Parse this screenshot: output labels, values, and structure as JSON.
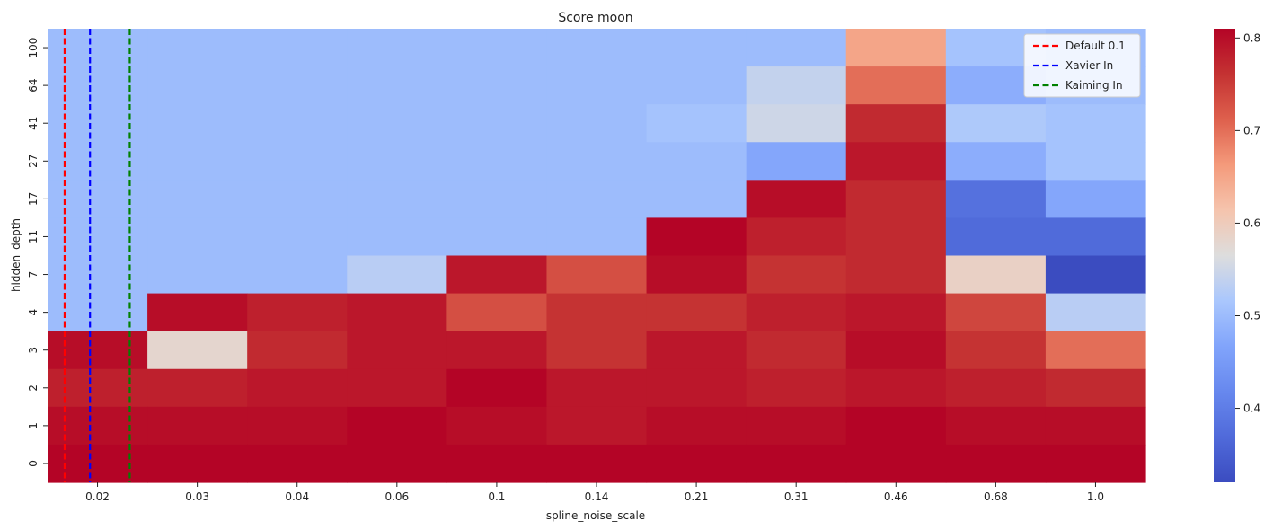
{
  "chart_data": {
    "type": "heatmap",
    "title": "Score moon",
    "xlabel": "spline_noise_scale",
    "ylabel": "hidden_depth",
    "x_categories": [
      "0.02",
      "0.03",
      "0.04",
      "0.06",
      "0.1",
      "0.14",
      "0.21",
      "0.31",
      "0.46",
      "0.68",
      "1.0"
    ],
    "y_categories": [
      "100",
      "64",
      "41",
      "27",
      "17",
      "11",
      "7",
      "4",
      "3",
      "2",
      "1",
      "0"
    ],
    "values": [
      [
        0.5,
        0.5,
        0.5,
        0.5,
        0.5,
        0.5,
        0.5,
        0.5,
        0.65,
        0.51,
        0.5
      ],
      [
        0.5,
        0.5,
        0.5,
        0.5,
        0.5,
        0.5,
        0.5,
        0.54,
        0.7,
        0.48,
        0.5
      ],
      [
        0.5,
        0.5,
        0.5,
        0.5,
        0.5,
        0.5,
        0.51,
        0.55,
        0.77,
        0.52,
        0.51
      ],
      [
        0.5,
        0.5,
        0.5,
        0.5,
        0.5,
        0.5,
        0.5,
        0.47,
        0.79,
        0.48,
        0.51
      ],
      [
        0.5,
        0.5,
        0.5,
        0.5,
        0.5,
        0.5,
        0.5,
        0.8,
        0.77,
        0.38,
        0.47
      ],
      [
        0.5,
        0.5,
        0.5,
        0.5,
        0.5,
        0.5,
        0.81,
        0.78,
        0.77,
        0.37,
        0.37
      ],
      [
        0.5,
        0.5,
        0.5,
        0.53,
        0.79,
        0.73,
        0.8,
        0.76,
        0.77,
        0.59,
        0.32
      ],
      [
        0.5,
        0.8,
        0.78,
        0.79,
        0.73,
        0.76,
        0.76,
        0.78,
        0.79,
        0.74,
        0.53
      ],
      [
        0.8,
        0.58,
        0.77,
        0.79,
        0.79,
        0.76,
        0.79,
        0.77,
        0.8,
        0.76,
        0.7
      ],
      [
        0.78,
        0.78,
        0.79,
        0.79,
        0.81,
        0.79,
        0.79,
        0.78,
        0.79,
        0.78,
        0.77
      ],
      [
        0.8,
        0.8,
        0.8,
        0.81,
        0.8,
        0.79,
        0.8,
        0.8,
        0.81,
        0.8,
        0.8
      ],
      [
        0.81,
        0.81,
        0.81,
        0.81,
        0.81,
        0.81,
        0.81,
        0.81,
        0.81,
        0.81,
        0.81
      ]
    ],
    "color_scale": "coolwarm",
    "vmin": 0.32,
    "vmax": 0.81,
    "colorbar_ticks": [
      0.4,
      0.5,
      0.6,
      0.7,
      0.8
    ],
    "vertical_lines": [
      {
        "label": "Default 0.1",
        "x": 0.0175,
        "color": "#ff0000",
        "style": "dashed"
      },
      {
        "label": "Xavier In",
        "x": 0.0194,
        "color": "#0000ff",
        "style": "dashed"
      },
      {
        "label": "Kaiming In",
        "x": 0.0228,
        "color": "#008000",
        "style": "dashed"
      }
    ],
    "legend_position": "top-right",
    "grid": false
  }
}
